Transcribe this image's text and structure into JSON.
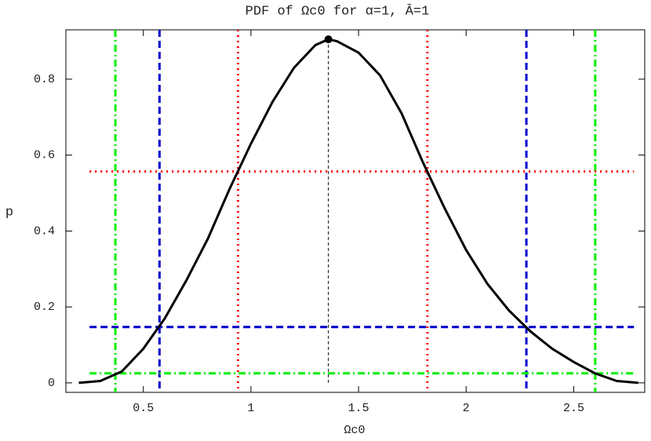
{
  "chart_data": {
    "type": "line",
    "title": "PDF of Ωc0 for α=1, Ā=1",
    "x_label": "Ωc0",
    "y_label": "p",
    "xlim": [
      0.14,
      2.83
    ],
    "ylim": [
      -0.025,
      0.93
    ],
    "xticks": [
      0.5,
      1,
      1.5,
      2,
      2.5
    ],
    "yticks": [
      0,
      0.2,
      0.4,
      0.6,
      0.8
    ],
    "series": [
      {
        "color": "#000000",
        "x": [
          0.2,
          0.3,
          0.4,
          0.5,
          0.6,
          0.7,
          0.8,
          0.9,
          1.0,
          1.1,
          1.2,
          1.3,
          1.36,
          1.4,
          1.5,
          1.6,
          1.7,
          1.8,
          1.9,
          2.0,
          2.1,
          2.2,
          2.3,
          2.4,
          2.5,
          2.6,
          2.7,
          2.8
        ],
        "values": [
          0.0,
          0.005,
          0.03,
          0.09,
          0.17,
          0.27,
          0.38,
          0.51,
          0.63,
          0.74,
          0.83,
          0.89,
          0.905,
          0.9,
          0.87,
          0.81,
          0.71,
          0.58,
          0.46,
          0.35,
          0.26,
          0.19,
          0.135,
          0.09,
          0.055,
          0.025,
          0.005,
          0.0
        ]
      }
    ],
    "peak": {
      "x": 1.36,
      "y": 0.905,
      "color": "#000000"
    },
    "vlines": [
      {
        "x": 0.94,
        "color": "#ff0000",
        "style": "dotted"
      },
      {
        "x": 1.82,
        "color": "#ff0000",
        "style": "dotted"
      },
      {
        "x": 0.575,
        "color": "#0000cc",
        "style": "dashed"
      },
      {
        "x": 2.28,
        "color": "#0000cc",
        "style": "dashed"
      },
      {
        "x": 0.37,
        "color": "#00ee00",
        "style": "dashdot"
      },
      {
        "x": 2.6,
        "color": "#00ee00",
        "style": "dashdot"
      }
    ],
    "hlines": [
      {
        "y": 0.557,
        "x_range": [
          0.25,
          2.78
        ],
        "color": "#ff0000",
        "style": "dotted"
      },
      {
        "y": 0.147,
        "x_range": [
          0.25,
          2.78
        ],
        "color": "#0000cc",
        "style": "dashed"
      },
      {
        "y": 0.025,
        "x_range": [
          0.25,
          2.78
        ],
        "color": "#00ee00",
        "style": "dashdot"
      }
    ]
  }
}
